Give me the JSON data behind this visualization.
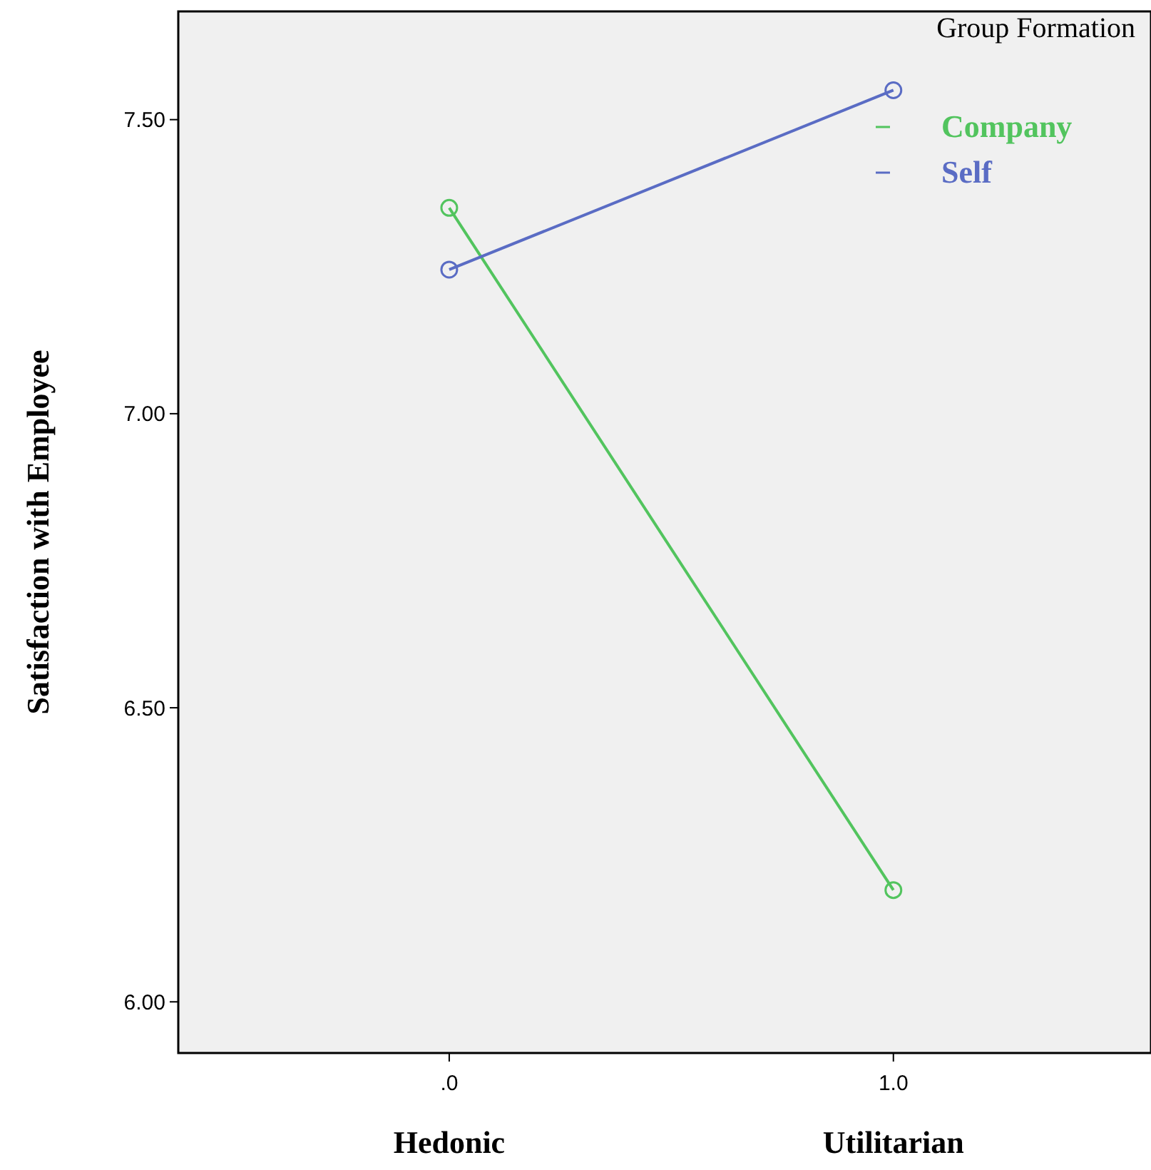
{
  "chart_data": {
    "type": "line",
    "ylabel": "Satisfaction with Employee",
    "legend_title": "Group Formation",
    "x": [
      0,
      1
    ],
    "series": [
      {
        "name": "Company",
        "color": "#52c45e",
        "values": [
          7.35,
          6.19
        ]
      },
      {
        "name": "Self",
        "color": "#5a6cc4",
        "values": [
          7.245,
          7.55
        ]
      }
    ],
    "xlim": [
      -0.61,
      1.58
    ],
    "ylim": [
      5.913,
      7.684
    ],
    "xticks": [
      {
        "value": 0,
        "label": ".0"
      },
      {
        "value": 1,
        "label": "1.0"
      }
    ],
    "yticks": [
      {
        "value": 6,
        "label": "6.00"
      },
      {
        "value": 6.5,
        "label": "6.50"
      },
      {
        "value": 7,
        "label": "7.00"
      },
      {
        "value": 7.5,
        "label": "7.50"
      }
    ],
    "annotations": [
      "Hedonic",
      "Utilitarian"
    ],
    "marker": "circle",
    "line_style": "solid",
    "legend": "top right",
    "grid": false
  }
}
